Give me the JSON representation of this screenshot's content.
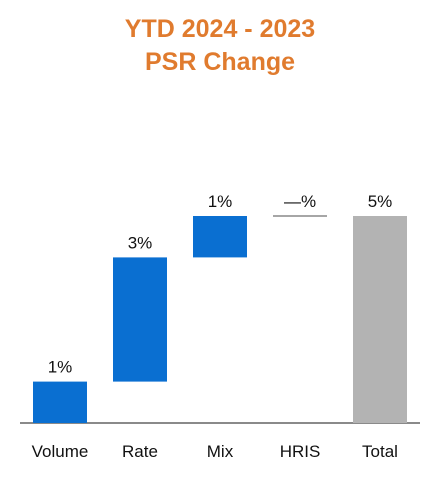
{
  "title_lines": [
    "YTD 2024 - 2023",
    "PSR Change"
  ],
  "colors": {
    "title": "#e07b2e",
    "step": "#0a6fd1",
    "total": "#b3b3b3",
    "flat": "#888888",
    "axis": "#444444"
  },
  "chart_data": {
    "type": "waterfall",
    "title": "YTD 2024 - 2023 PSR Change",
    "categories": [
      "Volume",
      "Rate",
      "Mix",
      "HRIS",
      "Total"
    ],
    "values": [
      1,
      3,
      1,
      0,
      5
    ],
    "data_labels": [
      "1%",
      "3%",
      "1%",
      "—%",
      "5%"
    ],
    "total_index": 4,
    "unit": "%",
    "ylim": [
      0,
      5
    ],
    "grid": false,
    "legend": "none"
  }
}
